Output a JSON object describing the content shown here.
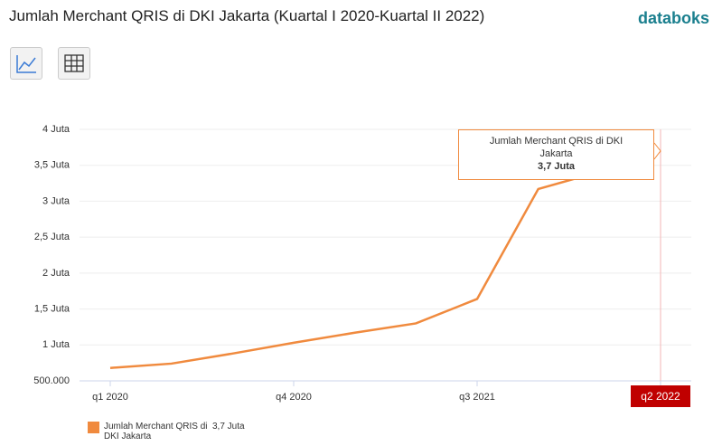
{
  "brand": "databoks",
  "chart_data": {
    "type": "line",
    "title": "Jumlah Merchant QRIS di DKI Jakarta (Kuartal I 2020-Kuartal II 2022)",
    "categories": [
      "q1 2020",
      null,
      null,
      "q4 2020",
      null,
      null,
      "q3 2021",
      null,
      null,
      "q2 2022"
    ],
    "series": [
      {
        "name": "Jumlah Merchant QRIS di DKI Jakarta",
        "color": "#f08a3e",
        "values": [
          680000,
          740000,
          880000,
          1030000,
          1170000,
          1300000,
          1640000,
          3170000,
          3410000,
          3700000
        ],
        "value_labels": [
          null,
          null,
          null,
          null,
          null,
          null,
          null,
          null,
          null,
          "3,7 Juta"
        ]
      }
    ],
    "ylim": [
      500000,
      4000000
    ],
    "yticks": [
      {
        "value": 500000,
        "label": "500.000"
      },
      {
        "value": 1000000,
        "label": "1 Juta"
      },
      {
        "value": 1500000,
        "label": "1,5 Juta"
      },
      {
        "value": 2000000,
        "label": "2 Juta"
      },
      {
        "value": 2500000,
        "label": "2,5 Juta"
      },
      {
        "value": 3000000,
        "label": "3 Juta"
      },
      {
        "value": 3500000,
        "label": "3,5 Juta"
      },
      {
        "value": 4000000,
        "label": "4 Juta"
      }
    ],
    "grid": true
  }
}
